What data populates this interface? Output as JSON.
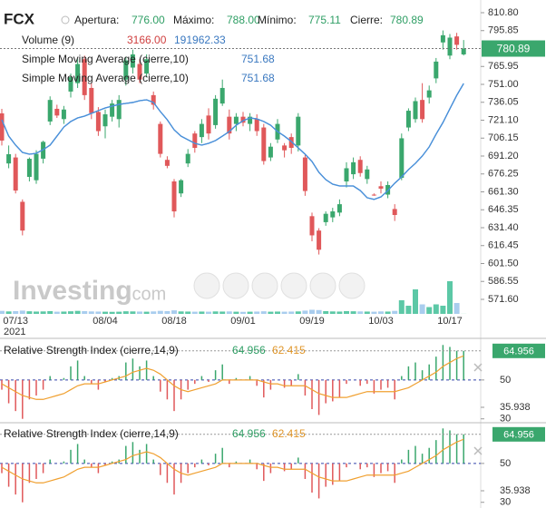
{
  "chart_data": [
    {
      "type": "candlestick",
      "symbol": "FCX",
      "header": {
        "open_label": "Apertura:",
        "open": "776.00",
        "high_label": "Máximo:",
        "high": "788.00",
        "low_label": "Mínimo:",
        "low": "775.11",
        "close_label": "Cierre:",
        "close": "780.89"
      },
      "x": [
        null,
        null,
        "07/13",
        null,
        null,
        null,
        null,
        null,
        null,
        null,
        null,
        null,
        null,
        null,
        null,
        "08/04",
        null,
        null,
        null,
        null,
        null,
        null,
        null,
        null,
        null,
        "08/18",
        null,
        null,
        null,
        null,
        null,
        null,
        null,
        null,
        null,
        "09/01",
        null,
        null,
        null,
        null,
        null,
        null,
        null,
        null,
        null,
        "09/19",
        null,
        null,
        null,
        null,
        null,
        null,
        null,
        null,
        null,
        "10/03",
        null,
        null,
        null,
        null,
        null,
        null,
        null,
        null,
        null,
        "10/17",
        null,
        null
      ],
      "year": "2021",
      "open": [
        726.8,
        685,
        690,
        653,
        673.8,
        671,
        689,
        720,
        730.6,
        722,
        745,
        752,
        772,
        748,
        728,
        716,
        724,
        722,
        755,
        765,
        768,
        760,
        742,
        718,
        688,
        670,
        660,
        685,
        710,
        707,
        725,
        717,
        735,
        724,
        718,
        724,
        718,
        722,
        715,
        690,
        705,
        700,
        707,
        700,
        690,
        641,
        629,
        636,
        640,
        644,
        670,
        676,
        688,
        672,
        659,
        666,
        659,
        647,
        673,
        715,
        722,
        738,
        740,
        756,
        786,
        775,
        791,
        776
      ],
      "high": [
        730.6,
        700,
        693,
        655,
        690,
        696,
        704,
        741,
        734,
        733,
        760,
        772,
        775,
        752,
        732,
        730,
        738,
        742,
        774,
        780,
        772,
        776,
        745,
        720,
        691,
        672,
        672,
        697,
        712,
        722,
        731,
        742,
        755,
        730,
        727,
        728,
        727,
        726,
        718,
        702,
        722,
        702,
        710,
        727,
        692,
        644,
        631,
        645,
        648,
        655,
        686,
        690,
        691,
        683,
        660,
        670,
        670,
        651,
        710,
        731,
        740,
        752,
        750,
        773,
        796,
        793,
        794,
        788
      ],
      "low": [
        700,
        681,
        660,
        625,
        670,
        668,
        685,
        717,
        723,
        718,
        740,
        748,
        738,
        722,
        708,
        706,
        720,
        715,
        750,
        760,
        752,
        757,
        730,
        690,
        681,
        640,
        657,
        682,
        694,
        702,
        705,
        714,
        733,
        705,
        712,
        716,
        712,
        708,
        684,
        687,
        702,
        690,
        693,
        695,
        658,
        620,
        609,
        633,
        636,
        641,
        665,
        672,
        674,
        668,
        658,
        660,
        656,
        637,
        671,
        712,
        719,
        719,
        735,
        752,
        780,
        772,
        780,
        775.11
      ],
      "close": [
        704.1,
        692.7,
        662.4,
        629,
        688.9,
        693,
        703,
        738,
        725,
        730,
        757,
        768,
        742,
        727,
        712,
        726,
        735,
        738,
        771,
        776,
        755,
        772,
        734,
        693,
        683,
        645,
        671,
        693,
        698,
        718,
        710,
        739,
        748,
        710,
        724,
        719,
        724,
        712,
        687,
        699,
        718,
        696,
        698,
        724,
        662,
        625,
        613,
        643,
        645,
        651,
        681,
        686,
        677,
        680,
        658.5,
        664,
        667,
        642,
        706,
        729,
        737,
        722,
        746,
        770,
        792,
        790,
        784,
        780.89
      ],
      "up_color": "#3aa76d",
      "down_color": "#e0585a",
      "overlays": [
        {
          "name": "Simple Moving Average (cierre,10)",
          "color": "#4a90d9",
          "values": [
            721.5,
            707.8,
            700.3,
            694.2,
            692.7,
            693.5,
            696.5,
            700.3,
            707.8,
            715.4,
            720,
            723,
            724.5,
            726.8,
            729.1,
            731.3,
            732.8,
            734.3,
            735.1,
            735.9,
            737.4,
            738.1,
            735.9,
            728.3,
            721.5,
            713.1,
            707.8,
            704.8,
            701.8,
            700.3,
            701.8,
            704.1,
            707.8,
            711.6,
            716.9,
            720.7,
            723,
            722.2,
            720,
            716.9,
            711.6,
            707.8,
            703.3,
            698,
            692.7,
            686.6,
            677.6,
            671.5,
            667.7,
            666.2,
            666.2,
            666.2,
            662.4,
            656.4,
            655,
            657.1,
            662.4,
            668.5,
            673.8,
            679.9,
            685.1,
            691.2,
            698.8,
            709.4,
            719.2,
            730.6,
            741.9,
            751.68
          ]
        },
        {
          "name": "Simple Moving Average (cierre,10)",
          "color": "#4a90d9",
          "values": [
            721.5,
            707.8,
            700.3,
            694.2,
            692.7,
            693.5,
            696.5,
            700.3,
            707.8,
            715.4,
            720,
            723,
            724.5,
            726.8,
            729.1,
            731.3,
            732.8,
            734.3,
            735.1,
            735.9,
            737.4,
            738.1,
            735.9,
            728.3,
            721.5,
            713.1,
            707.8,
            704.8,
            701.8,
            700.3,
            701.8,
            704.1,
            707.8,
            711.6,
            716.9,
            720.7,
            723,
            722.2,
            720,
            716.9,
            711.6,
            707.8,
            703.3,
            698,
            692.7,
            686.6,
            677.6,
            671.5,
            667.7,
            666.2,
            666.2,
            666.2,
            662.4,
            656.4,
            655,
            657.1,
            662.4,
            668.5,
            673.8,
            679.9,
            685.1,
            691.2,
            698.8,
            709.4,
            719.2,
            730.6,
            741.9,
            751.68
          ]
        }
      ],
      "volume": {
        "name": "Volume (9)",
        "value_label": "3166.00",
        "average_label": "191962.33",
        "up_color": "#5cc8a6",
        "down_color": "#a9cdee",
        "values": [
          110000,
          90000,
          100000,
          120000,
          95000,
          85000,
          90000,
          100000,
          80000,
          85000,
          95000,
          110000,
          100000,
          90000,
          85000,
          80000,
          75000,
          80000,
          95000,
          90000,
          85000,
          80000,
          90000,
          110000,
          100000,
          130000,
          90000,
          85000,
          80000,
          85000,
          80000,
          90000,
          85000,
          90000,
          80000,
          75000,
          80000,
          85000,
          95000,
          80000,
          85000,
          80000,
          85000,
          90000,
          120000,
          150000,
          140000,
          100000,
          90000,
          85000,
          100000,
          95000,
          90000,
          85000,
          80000,
          90000,
          85000,
          110000,
          500000,
          300000,
          900000,
          350000,
          250000,
          350000,
          300000,
          1200000,
          400000,
          3166
        ]
      },
      "ylim": [
        539.8,
        821.4
      ],
      "yticks": [
        {
          "value": 810.8,
          "label": "810.80"
        },
        {
          "value": 795.85,
          "label": "795.85"
        },
        {
          "value": 765.95,
          "label": "765.95"
        },
        {
          "value": 751,
          "label": "751.00"
        },
        {
          "value": 736.05,
          "label": "736.05"
        },
        {
          "value": 721.1,
          "label": "721.10"
        },
        {
          "value": 706.15,
          "label": "706.15"
        },
        {
          "value": 691.2,
          "label": "691.20"
        },
        {
          "value": 676.25,
          "label": "676.25"
        },
        {
          "value": 661.3,
          "label": "661.30"
        },
        {
          "value": 646.35,
          "label": "646.35"
        },
        {
          "value": 631.4,
          "label": "631.40"
        },
        {
          "value": 616.45,
          "label": "616.45"
        },
        {
          "value": 601.5,
          "label": "601.50"
        },
        {
          "value": 586.55,
          "label": "586.55"
        },
        {
          "value": 571.6,
          "label": "571.60"
        }
      ],
      "grid": false,
      "watermark": {
        "brand": "Investing",
        "suffix": ".com"
      }
    },
    {
      "type": "rsi",
      "title": "Relative Strength Index (cierre,14,9)",
      "rsi": {
        "up_color": "#3aa76d",
        "down_color": "#e0585a",
        "values": [
          45,
          38,
          34,
          30,
          40,
          42,
          45,
          52,
          50,
          51,
          57,
          60,
          52,
          48,
          45,
          49,
          51,
          52,
          59,
          61,
          57,
          60,
          52,
          44,
          40,
          34,
          40,
          45,
          48,
          52,
          49,
          55,
          58,
          48,
          51,
          50,
          52,
          47,
          41,
          45,
          50,
          46,
          47,
          53,
          42,
          35,
          32,
          38,
          39,
          41,
          48,
          50,
          47,
          48,
          43,
          45,
          46,
          40,
          52,
          57,
          59,
          55,
          58,
          62,
          68,
          67,
          65,
          64.956
        ]
      },
      "signal": {
        "color": "#f0a030",
        "values": [
          48,
          46,
          44,
          42,
          41,
          40,
          40,
          41,
          42,
          43,
          45,
          47,
          48,
          48,
          48,
          49,
          50,
          51,
          52,
          54,
          55,
          56,
          55,
          53,
          50,
          47,
          45,
          44,
          45,
          46,
          47,
          48,
          50,
          50,
          50,
          50,
          50,
          50,
          49,
          48,
          48,
          47,
          47,
          47,
          47,
          45,
          43,
          42,
          41,
          41,
          41,
          42,
          43,
          44,
          44,
          44,
          44,
          44,
          45,
          46,
          48,
          50,
          52,
          54,
          57,
          59,
          61,
          62.415
        ]
      },
      "ylim": [
        28,
        70
      ],
      "yticks": [
        50,
        35.938,
        30
      ]
    },
    {
      "type": "rsi",
      "title": "Relative Strength Index (cierre,14,9)",
      "rsi": {
        "up_color": "#3aa76d",
        "down_color": "#e0585a",
        "values": [
          45,
          38,
          34,
          30,
          40,
          42,
          45,
          52,
          50,
          51,
          57,
          60,
          52,
          48,
          45,
          49,
          51,
          52,
          59,
          61,
          57,
          60,
          52,
          44,
          40,
          34,
          40,
          45,
          48,
          52,
          49,
          55,
          58,
          48,
          51,
          50,
          52,
          47,
          41,
          45,
          50,
          46,
          47,
          53,
          42,
          35,
          32,
          38,
          39,
          41,
          48,
          50,
          47,
          48,
          43,
          45,
          46,
          40,
          52,
          57,
          59,
          55,
          58,
          62,
          68,
          67,
          65,
          64.956
        ]
      },
      "signal": {
        "color": "#f0a030",
        "values": [
          48,
          46,
          44,
          42,
          41,
          40,
          40,
          41,
          42,
          43,
          45,
          47,
          48,
          48,
          48,
          49,
          50,
          51,
          52,
          54,
          55,
          56,
          55,
          53,
          50,
          47,
          45,
          44,
          45,
          46,
          47,
          48,
          50,
          50,
          50,
          50,
          50,
          50,
          49,
          48,
          48,
          47,
          47,
          47,
          47,
          45,
          43,
          42,
          41,
          41,
          41,
          42,
          43,
          44,
          44,
          44,
          44,
          44,
          45,
          46,
          48,
          50,
          52,
          54,
          57,
          59,
          61,
          62.415
        ]
      },
      "ylim": [
        28,
        70
      ],
      "yticks": [
        50,
        35.938,
        30
      ]
    }
  ]
}
